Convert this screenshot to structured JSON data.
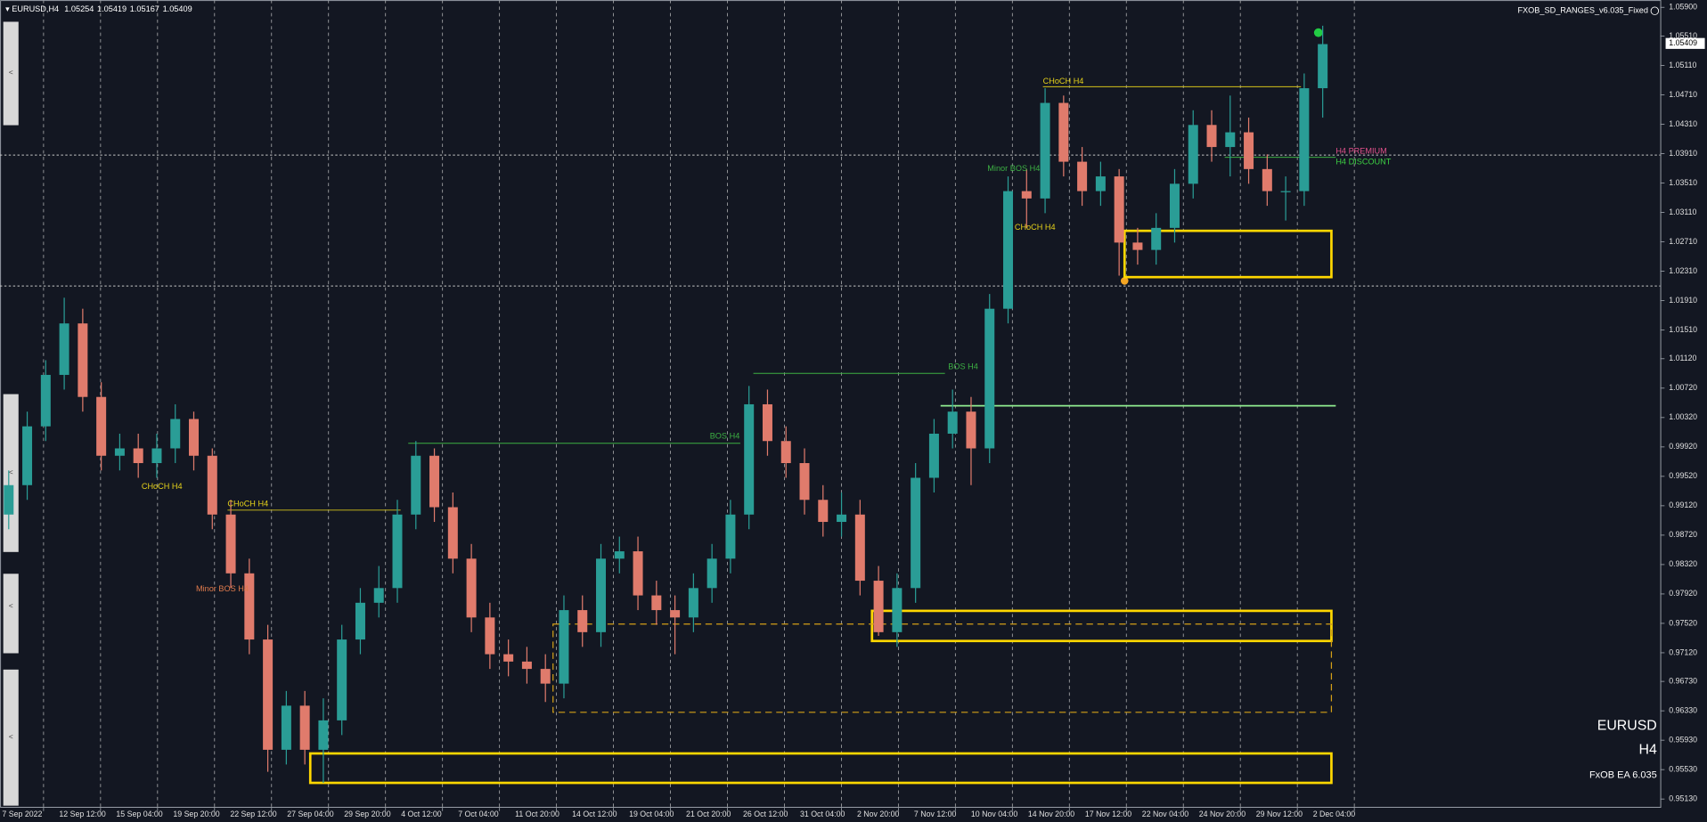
{
  "header": {
    "symbol": "EURUSD,H4",
    "ohlc": [
      1.05254,
      1.05419,
      1.05167,
      1.05409
    ]
  },
  "indicator": "FXOB_SD_RANGES_v6.035_Fixed",
  "watermark": {
    "symbol": "EURUSD",
    "timeframe": "H4",
    "ea": "FxOB EA 6.035"
  },
  "chart_data": {
    "type": "candlestick",
    "open": [
      0.99,
      0.994,
      1.002,
      1.009,
      1.016,
      1.006,
      0.998,
      0.999,
      0.997,
      0.999,
      1.003,
      0.998,
      0.99,
      0.982,
      0.973,
      0.958,
      0.964,
      0.958,
      0.962,
      0.973,
      0.978,
      0.98,
      0.99,
      0.998,
      0.991,
      0.984,
      0.976,
      0.971,
      0.97,
      0.969,
      0.967,
      0.977,
      0.974,
      0.984,
      0.985,
      0.979,
      0.977,
      0.976,
      0.98,
      0.984,
      0.99,
      1.005,
      1.0,
      0.997,
      0.992,
      0.989,
      0.99,
      0.981,
      0.974,
      0.98,
      0.995,
      1.001,
      1.004,
      0.999,
      1.018,
      1.034,
      1.033,
      1.046,
      1.038,
      1.034,
      1.036,
      1.027,
      1.026,
      1.029,
      1.035,
      1.043,
      1.04,
      1.042,
      1.037,
      1.034,
      1.034,
      1.048
    ],
    "high": [
      0.996,
      1.004,
      1.011,
      1.0195,
      1.018,
      1.008,
      1.001,
      1.001,
      1.001,
      1.005,
      1.004,
      0.999,
      0.992,
      0.984,
      0.975,
      0.966,
      0.966,
      0.965,
      0.975,
      0.98,
      0.983,
      0.992,
      1.0,
      0.999,
      0.993,
      0.986,
      0.978,
      0.973,
      0.972,
      0.971,
      0.979,
      0.979,
      0.986,
      0.987,
      0.987,
      0.981,
      0.979,
      0.982,
      0.986,
      0.992,
      1.0075,
      1.007,
      1.002,
      0.999,
      0.994,
      0.993,
      0.992,
      0.983,
      0.982,
      0.997,
      1.003,
      1.007,
      1.006,
      1.02,
      1.036,
      1.037,
      1.048,
      1.047,
      1.04,
      1.038,
      1.037,
      1.029,
      1.031,
      1.037,
      1.045,
      1.045,
      1.047,
      1.044,
      1.039,
      1.036,
      1.05,
      1.0565
    ],
    "low": [
      0.988,
      0.992,
      1.0,
      1.007,
      1.004,
      0.996,
      0.996,
      0.995,
      0.995,
      0.997,
      0.996,
      0.988,
      0.98,
      0.971,
      0.955,
      0.956,
      0.956,
      0.9535,
      0.96,
      0.971,
      0.976,
      0.978,
      0.988,
      0.989,
      0.982,
      0.974,
      0.969,
      0.968,
      0.967,
      0.9645,
      0.965,
      0.972,
      0.972,
      0.982,
      0.977,
      0.975,
      0.971,
      0.974,
      0.978,
      0.982,
      0.988,
      0.998,
      0.995,
      0.99,
      0.987,
      0.987,
      0.979,
      0.9735,
      0.972,
      0.978,
      0.993,
      0.999,
      0.994,
      0.997,
      1.016,
      1.029,
      1.031,
      1.036,
      1.032,
      1.032,
      1.0225,
      1.024,
      1.024,
      1.027,
      1.033,
      1.038,
      1.036,
      1.035,
      1.032,
      1.03,
      1.032,
      1.044
    ],
    "close": [
      0.994,
      1.002,
      1.009,
      1.016,
      1.006,
      0.998,
      0.999,
      0.997,
      0.999,
      1.003,
      0.998,
      0.99,
      0.982,
      0.973,
      0.958,
      0.964,
      0.958,
      0.962,
      0.973,
      0.978,
      0.98,
      0.99,
      0.998,
      0.991,
      0.984,
      0.976,
      0.971,
      0.97,
      0.969,
      0.967,
      0.977,
      0.974,
      0.984,
      0.985,
      0.979,
      0.977,
      0.976,
      0.98,
      0.984,
      0.99,
      1.005,
      1.0,
      0.997,
      0.992,
      0.989,
      0.99,
      0.981,
      0.974,
      0.98,
      0.995,
      1.001,
      1.004,
      0.999,
      1.018,
      1.034,
      1.033,
      1.046,
      1.038,
      1.034,
      1.036,
      1.027,
      1.026,
      1.029,
      1.035,
      1.043,
      1.04,
      1.042,
      1.037,
      1.034,
      1.034,
      1.048,
      1.054
    ],
    "colors": {
      "up": "#2a9d96",
      "down": "#e07b6c"
    },
    "ylim": [
      0.9501,
      1.06
    ],
    "yticks": [
      {
        "value": 1.059,
        "label": "1.05900"
      },
      {
        "value": 1.0551,
        "label": "1.05510"
      },
      {
        "value": 1.0511,
        "label": "1.05110"
      },
      {
        "value": 1.0471,
        "label": "1.04710"
      },
      {
        "value": 1.0431,
        "label": "1.04310"
      },
      {
        "value": 1.0391,
        "label": "1.03910"
      },
      {
        "value": 1.0351,
        "label": "1.03510"
      },
      {
        "value": 1.0311,
        "label": "1.03110"
      },
      {
        "value": 1.0271,
        "label": "1.02710"
      },
      {
        "value": 1.0231,
        "label": "1.02310"
      },
      {
        "value": 1.0191,
        "label": "1.01910"
      },
      {
        "value": 1.0151,
        "label": "1.01510"
      },
      {
        "value": 1.0112,
        "label": "1.01120"
      },
      {
        "value": 1.0072,
        "label": "1.00720"
      },
      {
        "value": 1.0032,
        "label": "1.00320"
      },
      {
        "value": 0.9992,
        "label": "0.99920"
      },
      {
        "value": 0.9952,
        "label": "0.99520"
      },
      {
        "value": 0.9912,
        "label": "0.99120"
      },
      {
        "value": 0.9872,
        "label": "0.98720"
      },
      {
        "value": 0.9832,
        "label": "0.98320"
      },
      {
        "value": 0.9792,
        "label": "0.97920"
      },
      {
        "value": 0.9752,
        "label": "0.97520"
      },
      {
        "value": 0.9712,
        "label": "0.97120"
      },
      {
        "value": 0.9673,
        "label": "0.96730"
      },
      {
        "value": 0.9633,
        "label": "0.96330"
      },
      {
        "value": 0.9593,
        "label": "0.95930"
      },
      {
        "value": 0.9553,
        "label": "0.95530"
      },
      {
        "value": 0.9513,
        "label": "0.95130"
      }
    ],
    "x_labels": [
      "7 Sep 2022",
      "12 Sep 12:00",
      "15 Sep 04:00",
      "19 Sep 20:00",
      "22 Sep 12:00",
      "27 Sep 04:00",
      "29 Sep 20:00",
      "4 Oct 12:00",
      "7 Oct 04:00",
      "11 Oct 20:00",
      "14 Oct 12:00",
      "19 Oct 04:00",
      "21 Oct 20:00",
      "26 Oct 12:00",
      "31 Oct 04:00",
      "2 Nov 20:00",
      "7 Nov 12:00",
      "10 Nov 04:00",
      "14 Nov 20:00",
      "17 Nov 12:00",
      "22 Nov 04:00",
      "24 Nov 20:00",
      "29 Nov 12:00",
      "2 Dec 04:00"
    ],
    "last_price": 1.05409,
    "zones": [
      {
        "top": 1.0286,
        "bottom": 1.0223,
        "color": "#ffd700"
      },
      {
        "top": 0.9769,
        "bottom": 0.9728,
        "color": "#ffd700"
      },
      {
        "top": 0.9575,
        "bottom": 0.9535,
        "color": "#ffd700"
      },
      {
        "top": 0.9751,
        "bottom": 0.9631,
        "color": "#d4a017"
      }
    ],
    "levels": [
      {
        "price": 1.0389,
        "color": "#c8c8c8"
      },
      {
        "price": 1.0211,
        "color": "#c8c8c8"
      },
      {
        "price": 1.0048,
        "color": "#90ee90"
      },
      {
        "price": 1.0482,
        "color": "#d4c21a"
      },
      {
        "price": 1.0092,
        "color": "#3cb043"
      },
      {
        "price": 0.9997,
        "color": "#3cb043"
      },
      {
        "price": 0.9906,
        "color": "#d4c21a"
      },
      {
        "price": 1.0386,
        "color": "#3cb043"
      }
    ],
    "annotations": [
      {
        "text": "CHoCH H4",
        "color": "#e6d21a"
      },
      {
        "text": "Minor BOS H4",
        "color": "#3cb043"
      },
      {
        "text": "CHoCH H4",
        "color": "#e6d21a"
      },
      {
        "text": "BOS H4",
        "color": "#3cb043"
      },
      {
        "text": "BOS H4",
        "color": "#3cb043"
      },
      {
        "text": "CHoCH H4",
        "color": "#e6d21a"
      },
      {
        "text": "CHoCH H4",
        "color": "#e6d21a"
      },
      {
        "text": "Minor BOS H4",
        "color": "#e07b4c"
      },
      {
        "text": "H4 PREMIUM",
        "color": "#e0508a"
      },
      {
        "text": "H4 DISCOUNT",
        "color": "#3cd043"
      }
    ]
  }
}
